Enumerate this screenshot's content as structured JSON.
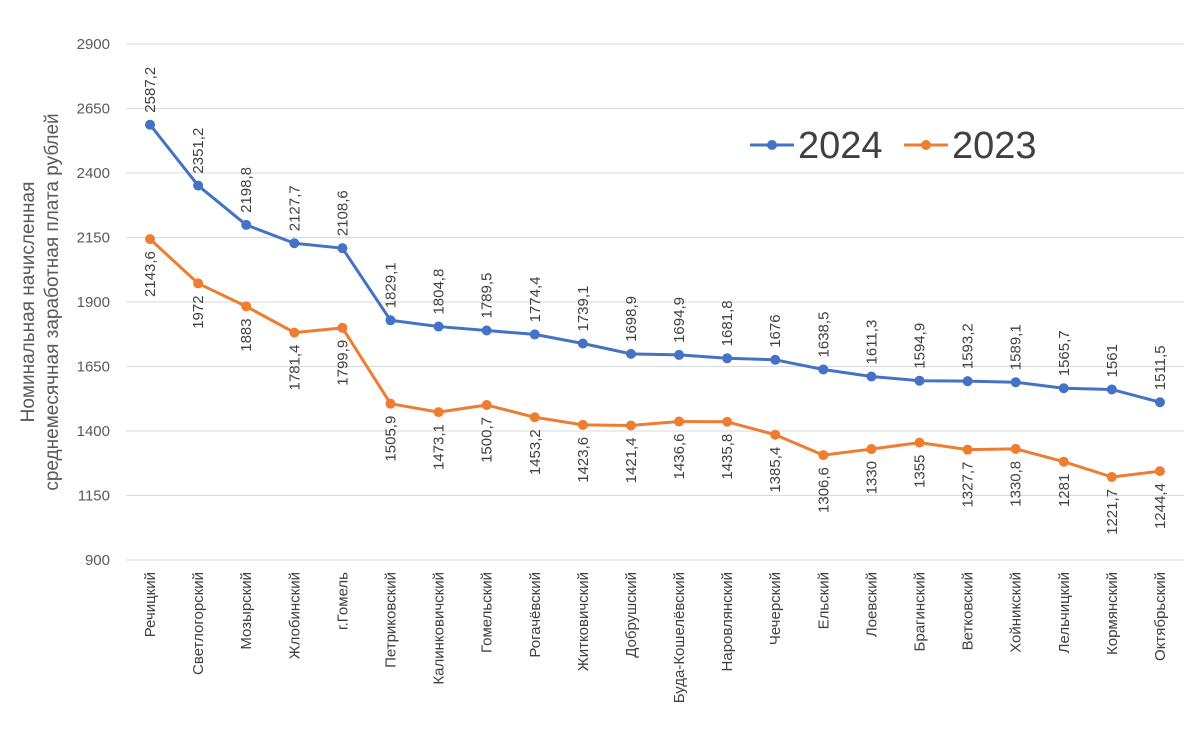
{
  "chart_data": {
    "type": "line",
    "ylabel_line1": "Номинальная начисленная",
    "ylabel_line2": "среднемесячная заработная плата рублей",
    "ylim": [
      900,
      2900
    ],
    "yticks": [
      900,
      1150,
      1400,
      1650,
      1900,
      2150,
      2400,
      2650,
      2900
    ],
    "grid": true,
    "legend_position": "top-right",
    "categories": [
      "Речицкий",
      "Светлогорский",
      "Мозырский",
      "Жлобинский",
      "г.Гомель",
      "Петриковский",
      "Калинковичский",
      "Гомельский",
      "Рогачёвский",
      "Житковичский",
      "Добрушский",
      "Буда-Кошелёвский",
      "Наровлянский",
      "Чечерский",
      "Ельский",
      "Лоевский",
      "Брагинский",
      "Ветковский",
      "Хойникский",
      "Лельчицкий",
      "Кормянский",
      "Октябрьский"
    ],
    "series": [
      {
        "name": "2024",
        "color": "#4472c4",
        "values": [
          2587.2,
          2351.2,
          2198.8,
          2127.7,
          2108.6,
          1829.1,
          1804.8,
          1789.5,
          1774.4,
          1739.1,
          1698.9,
          1694.9,
          1681.8,
          1676,
          1638.5,
          1611.3,
          1594.9,
          1593.2,
          1589.1,
          1565.7,
          1561,
          1511.5
        ],
        "labels": [
          "2587,2",
          "2351,2",
          "2198,8",
          "2127,7",
          "2108,6",
          "1829,1",
          "1804,8",
          "1789,5",
          "1774,4",
          "1739,1",
          "1698,9",
          "1694,9",
          "1681,8",
          "1676",
          "1638,5",
          "1611,3",
          "1594,9",
          "1593,2",
          "1589,1",
          "1565,7",
          "1561",
          "1511,5"
        ]
      },
      {
        "name": "2023",
        "color": "#ed7d31",
        "values": [
          2143.6,
          1972,
          1883,
          1781.4,
          1799.9,
          1505.9,
          1473.1,
          1500.7,
          1453.2,
          1423.6,
          1421.4,
          1436.6,
          1435.8,
          1385.4,
          1306.6,
          1330,
          1355,
          1327.7,
          1330.8,
          1281,
          1221.7,
          1244.4
        ],
        "labels": [
          "2143,6",
          "1972",
          "1883",
          "1781,4",
          "1799,9",
          "1505,9",
          "1473,1",
          "1500,7",
          "1453,2",
          "1423,6",
          "1421,4",
          "1436,6",
          "1435,8",
          "1385,4",
          "1306,6",
          "1330",
          "1355",
          "1327,7",
          "1330,8",
          "1281",
          "1221,7",
          "1244,4"
        ]
      }
    ]
  }
}
